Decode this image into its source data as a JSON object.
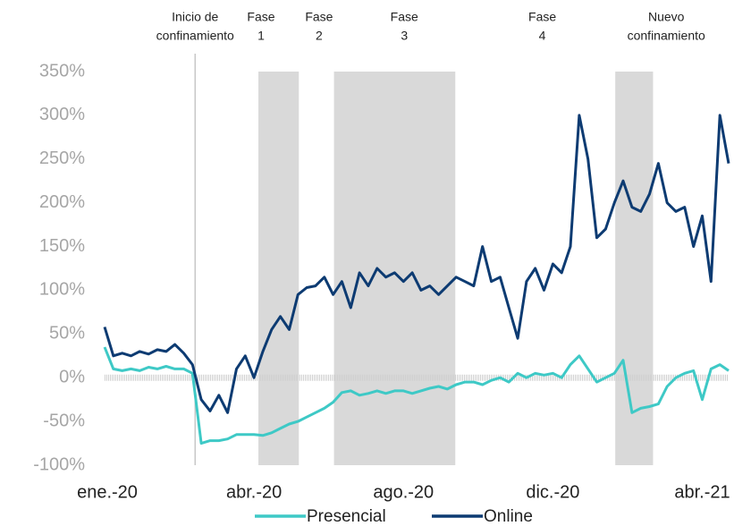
{
  "chart_data": {
    "type": "line",
    "categories": [
      "ene.-20",
      null,
      null,
      null,
      null,
      null,
      null,
      null,
      null,
      null,
      null,
      null,
      null,
      null,
      null,
      null,
      null,
      "abr.-20",
      null,
      null,
      null,
      null,
      null,
      null,
      null,
      null,
      null,
      null,
      null,
      null,
      null,
      null,
      null,
      null,
      "ago.-20",
      null,
      null,
      null,
      null,
      null,
      null,
      null,
      null,
      null,
      null,
      null,
      null,
      null,
      null,
      null,
      null,
      "dic.-20",
      null,
      null,
      null,
      null,
      null,
      null,
      null,
      null,
      null,
      null,
      null,
      null,
      null,
      null,
      null,
      null,
      "abr.-21",
      null,
      null,
      null
    ],
    "series": [
      {
        "name": "Presencial",
        "color": "#3ec9c6",
        "values": [
          35,
          10,
          8,
          10,
          8,
          12,
          10,
          13,
          10,
          10,
          5,
          -75,
          -72,
          -72,
          -70,
          -65,
          -65,
          -65,
          -66,
          -63,
          -58,
          -53,
          -50,
          -45,
          -40,
          -35,
          -28,
          -17,
          -15,
          -20,
          -18,
          -15,
          -18,
          -15,
          -15,
          -18,
          -15,
          -12,
          -10,
          -13,
          -8,
          -5,
          -5,
          -8,
          -3,
          0,
          -5,
          5,
          0,
          5,
          3,
          5,
          0,
          15,
          25,
          10,
          -5,
          0,
          5,
          20,
          -40,
          -35,
          -33,
          -30,
          -10,
          0,
          5,
          8,
          -25,
          10,
          15,
          8
        ]
      },
      {
        "name": "Online",
        "color": "#0d3b72",
        "values": [
          58,
          25,
          28,
          25,
          30,
          27,
          32,
          30,
          38,
          28,
          15,
          -25,
          -38,
          -20,
          -40,
          10,
          25,
          0,
          30,
          55,
          70,
          55,
          95,
          103,
          105,
          115,
          95,
          110,
          80,
          120,
          105,
          125,
          115,
          120,
          110,
          120,
          100,
          105,
          95,
          105,
          115,
          110,
          105,
          150,
          110,
          115,
          80,
          45,
          110,
          125,
          100,
          130,
          120,
          150,
          300,
          250,
          160,
          170,
          200,
          225,
          195,
          190,
          210,
          245,
          200,
          190,
          195,
          150,
          185,
          110,
          300,
          245
        ]
      }
    ],
    "ylim": [
      -100,
      350
    ],
    "yticks": [
      {
        "value": -100,
        "label": "-100%"
      },
      {
        "value": -50,
        "label": "-50%"
      },
      {
        "value": 0,
        "label": "0%"
      },
      {
        "value": 50,
        "label": "50%"
      },
      {
        "value": 100,
        "label": "100%"
      },
      {
        "value": 150,
        "label": "150%"
      },
      {
        "value": 200,
        "label": "200%"
      },
      {
        "value": 250,
        "label": "250%"
      },
      {
        "value": 300,
        "label": "300%"
      },
      {
        "value": 350,
        "label": "350%"
      }
    ],
    "bands": [
      {
        "start": 17.5,
        "end": 22.1
      },
      {
        "start": 26.1,
        "end": 39.9
      },
      {
        "start": 58.1,
        "end": 62.4
      }
    ],
    "annotations": [
      {
        "lines": [
          "Inicio de",
          "confinamiento"
        ],
        "x": 10.3,
        "line": true
      },
      {
        "lines": [
          "Fase",
          "1"
        ],
        "x": 17.8
      },
      {
        "lines": [
          "Fase",
          "2"
        ],
        "x": 24.4
      },
      {
        "lines": [
          "Fase",
          "3"
        ],
        "x": 34.1
      },
      {
        "lines": [
          "Fase",
          "4"
        ],
        "x": 49.8
      },
      {
        "lines": [
          "Nuevo",
          "confinamiento"
        ],
        "x": 63.9
      }
    ],
    "legend": "bottom"
  }
}
